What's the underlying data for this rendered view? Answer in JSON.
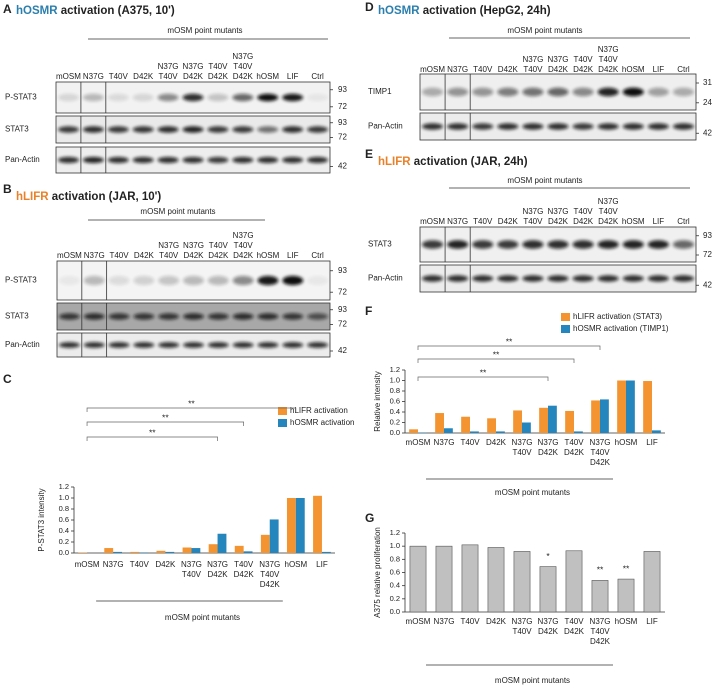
{
  "blots": [
    {
      "letter": "A",
      "title": {
        "highlight": "hOSMR",
        "rest": "activation (A375, 10')",
        "highlight_color": "#2a7fae"
      },
      "header": "mOSM point mutants",
      "lanes": [
        [
          "mOSM"
        ],
        [
          "N37G"
        ],
        [
          "T40V"
        ],
        [
          "D42K"
        ],
        [
          "N37G",
          "T40V"
        ],
        [
          "N37G",
          "D42K"
        ],
        [
          "T40V",
          "D42K"
        ],
        [
          "N37G",
          "T40V",
          "D42K"
        ],
        [
          "hOSM"
        ],
        [
          "LIF"
        ],
        [
          "Ctrl"
        ]
      ],
      "rows": [
        {
          "label": "P-STAT3",
          "markers": [
            93,
            72
          ]
        },
        {
          "label": "STAT3",
          "markers": [
            93,
            72
          ]
        },
        {
          "label": "Pan-Actin",
          "markers": [
            42
          ]
        }
      ]
    },
    {
      "letter": "B",
      "title": {
        "highlight": "hLIFR",
        "rest": "activation (JAR, 10')",
        "highlight_color": "#e8822a"
      },
      "header": "mOSM point mutants",
      "lanes": [
        [
          "mOSM"
        ],
        [
          "N37G"
        ],
        [
          "T40V"
        ],
        [
          "D42K"
        ],
        [
          "N37G",
          "T40V"
        ],
        [
          "N37G",
          "D42K"
        ],
        [
          "T40V",
          "D42K"
        ],
        [
          "N37G",
          "T40V",
          "D42K"
        ],
        [
          "hOSM"
        ],
        [
          "LIF"
        ],
        [
          "Ctrl"
        ]
      ],
      "rows": [
        {
          "label": "P-STAT3",
          "markers": [
            93,
            72
          ]
        },
        {
          "label": "STAT3",
          "markers": [
            93,
            72
          ]
        },
        {
          "label": "Pan-Actin",
          "markers": [
            42
          ]
        }
      ]
    },
    {
      "letter": "D",
      "title": {
        "highlight": "hOSMR",
        "rest": "activation (HepG2, 24h)",
        "highlight_color": "#2a7fae"
      },
      "header": "mOSM point mutants",
      "lanes": [
        [
          "mOSM"
        ],
        [
          "N37G"
        ],
        [
          "T40V"
        ],
        [
          "D42K"
        ],
        [
          "N37G",
          "T40V"
        ],
        [
          "N37G",
          "D42K"
        ],
        [
          "T40V",
          "D42K"
        ],
        [
          "N37G",
          "T40V",
          "D42K"
        ],
        [
          "hOSM"
        ],
        [
          "LIF"
        ],
        [
          "Ctrl"
        ]
      ],
      "rows": [
        {
          "label": "TIMP1",
          "markers": [
            31,
            24
          ]
        },
        {
          "label": "Pan-Actin",
          "markers": [
            42
          ]
        }
      ]
    },
    {
      "letter": "E",
      "title": {
        "highlight": "hLIFR",
        "rest": "activation (JAR, 24h)",
        "highlight_color": "#e8822a"
      },
      "header": "mOSM point mutants",
      "lanes": [
        [
          "mOSM"
        ],
        [
          "N37G"
        ],
        [
          "T40V"
        ],
        [
          "D42K"
        ],
        [
          "N37G",
          "T40V"
        ],
        [
          "N37G",
          "D42K"
        ],
        [
          "T40V",
          "D42K"
        ],
        [
          "N37G",
          "T40V",
          "D42K"
        ],
        [
          "hOSM"
        ],
        [
          "LIF"
        ],
        [
          "Ctrl"
        ]
      ],
      "rows": [
        {
          "label": "STAT3",
          "markers": [
            93,
            72
          ]
        },
        {
          "label": "Pan-Actin",
          "markers": [
            42
          ]
        }
      ]
    }
  ],
  "chart_data": [
    {
      "type": "bar",
      "letter": "C",
      "y_label": "P-STAT3 intensity",
      "x_label": "mOSM point mutants",
      "categories": [
        [
          "mOSM"
        ],
        [
          "N37G"
        ],
        [
          "T40V"
        ],
        [
          "D42K"
        ],
        [
          "N37G",
          "T40V"
        ],
        [
          "N37G",
          "D42K"
        ],
        [
          "T40V",
          "D42K"
        ],
        [
          "N37G",
          "T40V",
          "D42K"
        ],
        [
          "hOSM"
        ],
        [
          "LIF"
        ]
      ],
      "series": [
        {
          "name": "hLIFR activation",
          "color": "#f39431",
          "values": [
            0.01,
            0.09,
            0.02,
            0.04,
            0.1,
            0.16,
            0.13,
            0.33,
            1.0,
            1.04
          ]
        },
        {
          "name": "hOSMR activation",
          "color": "#2586bd",
          "values": [
            0.0,
            0.02,
            0.01,
            0.02,
            0.09,
            0.35,
            0.03,
            0.61,
            1.0,
            0.02
          ]
        }
      ],
      "ylim": [
        0,
        1.2
      ],
      "yticks": [
        {
          "value": 0,
          "label": "0.0"
        },
        0.2,
        0.4,
        0.6,
        0.8,
        {
          "value": 1,
          "label": "1.0"
        },
        1.2
      ],
      "significance_brackets": [
        "**",
        "**",
        "**"
      ]
    },
    {
      "type": "bar",
      "letter": "F",
      "y_label": "Relative intensity",
      "x_label": "mOSM point mutants",
      "categories": [
        [
          "mOSM"
        ],
        [
          "N37G"
        ],
        [
          "T40V"
        ],
        [
          "D42K"
        ],
        [
          "N37G",
          "T40V"
        ],
        [
          "N37G",
          "D42K"
        ],
        [
          "T40V",
          "D42K"
        ],
        [
          "N37G",
          "T40V",
          "D42K"
        ],
        [
          "hOSM"
        ],
        [
          "LIF"
        ]
      ],
      "series": [
        {
          "name": "hLIFR activation (STAT3)",
          "color": "#f39431",
          "values": [
            0.07,
            0.38,
            0.31,
            0.28,
            0.43,
            0.48,
            0.42,
            0.62,
            1.0,
            0.99
          ]
        },
        {
          "name": "hOSMR activation (TIMP1)",
          "color": "#2586bd",
          "values": [
            0.01,
            0.09,
            0.03,
            0.03,
            0.2,
            0.52,
            0.03,
            0.64,
            1.0,
            0.05
          ]
        }
      ],
      "ylim": [
        0,
        1.2
      ],
      "yticks": [
        {
          "value": 0,
          "label": "0.0"
        },
        0.2,
        0.4,
        0.6,
        0.8,
        {
          "value": 1,
          "label": "1.0"
        },
        1.2
      ],
      "significance_brackets": [
        "**",
        "**",
        "**"
      ]
    },
    {
      "type": "bar",
      "letter": "G",
      "y_label": "A375 relative proliferation",
      "x_label": "mOSM point mutants",
      "categories": [
        [
          "mOSM"
        ],
        [
          "N37G"
        ],
        [
          "T40V"
        ],
        [
          "D42K"
        ],
        [
          "N37G",
          "T40V"
        ],
        [
          "N37G",
          "D42K"
        ],
        [
          "T40V",
          "D42K"
        ],
        [
          "N37G",
          "T40V",
          "D42K"
        ],
        [
          "hOSM"
        ],
        [
          "LIF"
        ]
      ],
      "series": [
        {
          "color": "#c0c0c0",
          "values": [
            1.0,
            1.0,
            1.02,
            0.98,
            0.92,
            0.69,
            0.93,
            0.48,
            0.5,
            0.92
          ]
        }
      ],
      "significance": [
        null,
        null,
        null,
        null,
        null,
        "*",
        null,
        "**",
        "**",
        null
      ],
      "ylim": [
        0,
        1.2
      ],
      "yticks": [
        {
          "value": 0,
          "label": "0.0"
        },
        0.2,
        0.4,
        0.6,
        0.8,
        {
          "value": 1,
          "label": "1.0"
        },
        1.2
      ]
    }
  ]
}
